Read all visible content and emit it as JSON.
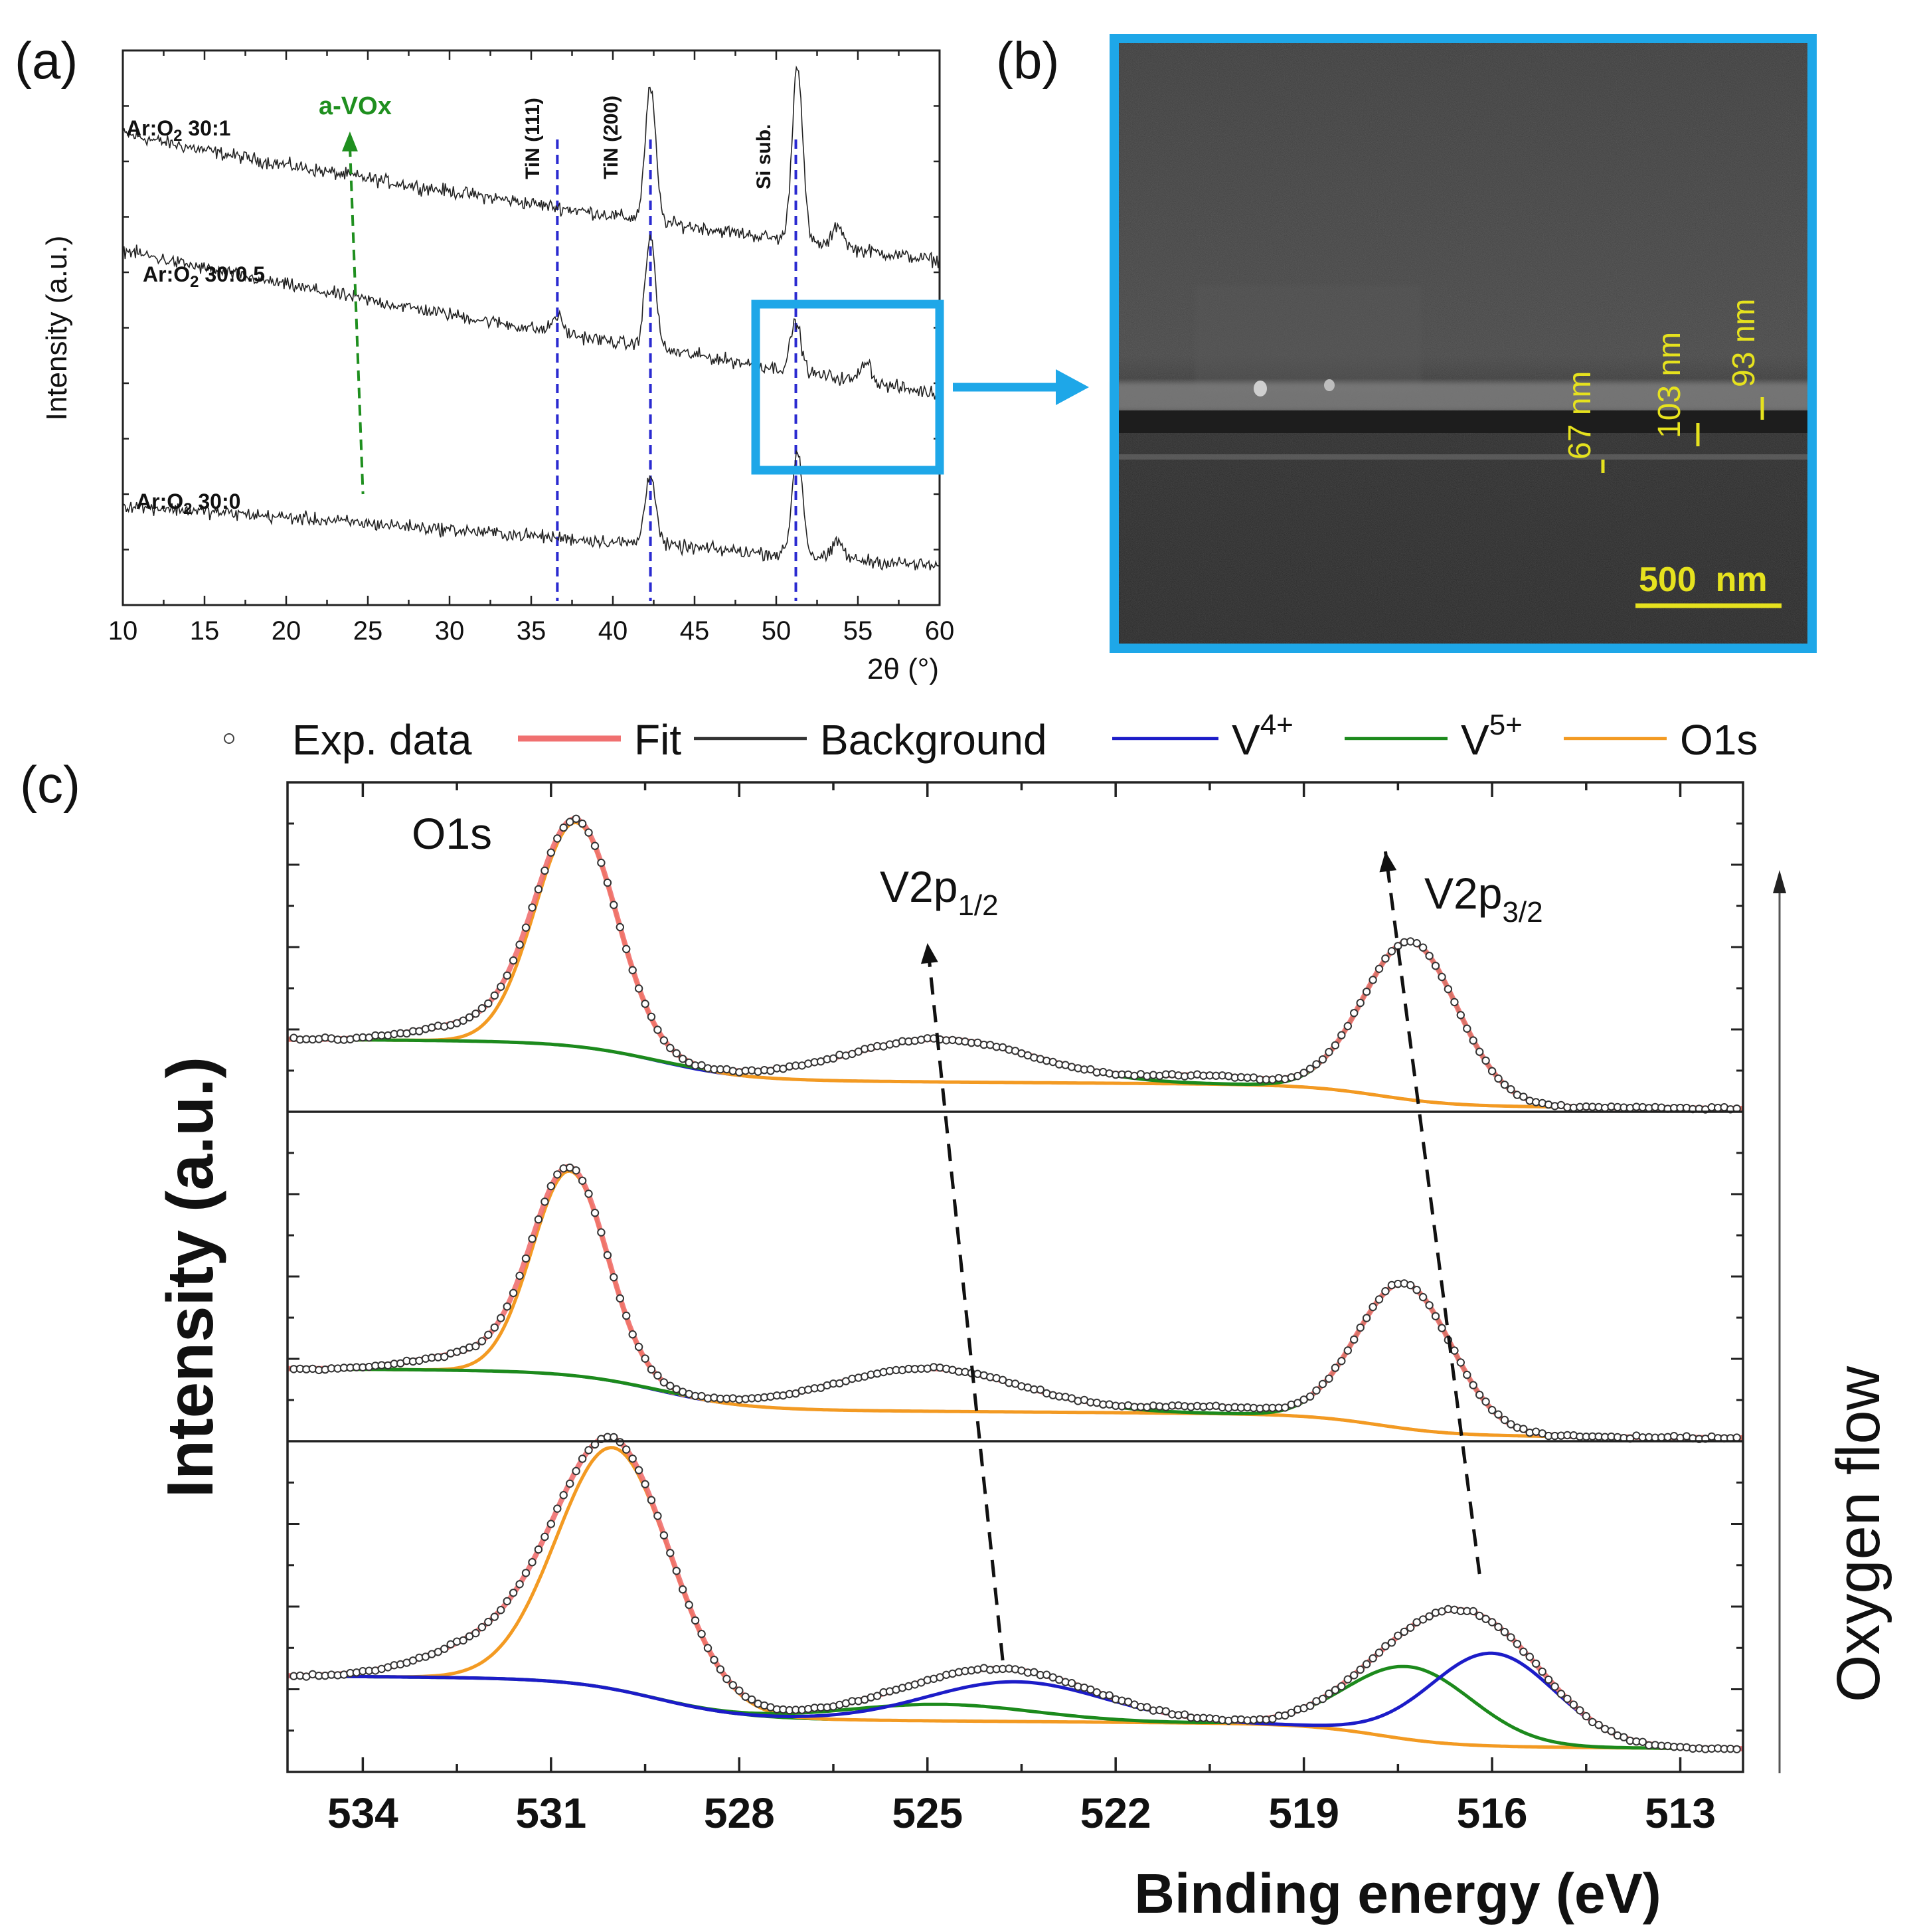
{
  "panel_labels": {
    "a": "(a)",
    "b": "(b)",
    "c": "(c)"
  },
  "colors": {
    "highlight": "#1ea7e8",
    "fit": "#f07070",
    "background": "#444444",
    "v4": "#1c1cc8",
    "v5": "#1c8a1c",
    "o1s": "#f39a22",
    "avox": "#1f8f1f",
    "ref_lines": "#2a2ad0",
    "sem_label": "#e6e21e"
  },
  "chart_data": [
    {
      "panel": "a",
      "type": "line",
      "xlabel": "2θ (°)",
      "ylabel": "Intensity (a.u.)",
      "xlim": [
        10,
        60
      ],
      "x_ticks": [
        "10",
        "15",
        "20",
        "25",
        "30",
        "35",
        "40",
        "45",
        "50",
        "55",
        "60"
      ],
      "series": [
        {
          "name": "Ar:O2 30:1",
          "name_main": "Ar:O",
          "name_sub": "2",
          "name_tail": " 30:1",
          "baseline_start": 0.82,
          "baseline_end": 0.62,
          "peaks": [
            [
              42.3,
              0.24
            ],
            [
              51.3,
              0.32
            ],
            [
              53.8,
              0.04
            ]
          ]
        },
        {
          "name": "Ar:O2 30:0.5",
          "name_main": "Ar:O",
          "name_sub": "2",
          "name_tail": " 30:0.5",
          "baseline_start": 0.61,
          "baseline_end": 0.38,
          "peaks": [
            [
              36.6,
              0.03
            ],
            [
              42.3,
              0.2
            ],
            [
              51.2,
              0.09
            ],
            [
              55.5,
              0.04
            ]
          ]
        },
        {
          "name": "Ar:O2 30:0",
          "name_main": "Ar:O",
          "name_sub": "2",
          "name_tail": " 30:0",
          "baseline_start": 0.18,
          "baseline_end": 0.07,
          "peaks": [
            [
              42.3,
              0.13
            ],
            [
              51.3,
              0.19
            ],
            [
              53.8,
              0.03
            ]
          ]
        }
      ],
      "reference_lines": [
        {
          "label": "TiN (111)",
          "x": 36.6
        },
        {
          "label": "TiN (200)",
          "x": 42.3
        },
        {
          "label": "Si sub.",
          "x": 51.2
        }
      ],
      "annotation": {
        "label": "a-VOx",
        "x_top": 23.9,
        "x_bottom": 24.7
      }
    },
    {
      "panel": "c",
      "type": "line",
      "xlabel": "Binding energy (eV)",
      "ylabel": "Intensity (a.u.)",
      "side_label": "Oxygen flow",
      "xlim": [
        535.2,
        512.0
      ],
      "x_ticks": [
        "534",
        "531",
        "528",
        "525",
        "522",
        "519",
        "516",
        "513"
      ],
      "legend": [
        {
          "label": "Exp. data",
          "style": "marker"
        },
        {
          "label": "Fit",
          "style": "fit"
        },
        {
          "label": "Background",
          "style": "background"
        },
        {
          "label": "V",
          "sup": "4+",
          "style": "v4"
        },
        {
          "label": "V",
          "sup": "5+",
          "style": "v5"
        },
        {
          "label": "O1s",
          "style": "o1s"
        }
      ],
      "peak_labels": [
        {
          "main": "O1s",
          "sub": ""
        },
        {
          "main": "V2p",
          "sub": "1/2"
        },
        {
          "main": "V2p",
          "sub": "3/2"
        }
      ],
      "subplots": [
        {
          "position": "top",
          "background_levels": [
            0.22,
            0.01
          ],
          "o1s": {
            "center": 530.6,
            "height": 0.68,
            "width": 0.65
          },
          "v5": [
            {
              "center": 524.8,
              "height": 0.13,
              "width": 1.5
            },
            {
              "center": 517.3,
              "height": 0.48,
              "width": 0.75
            }
          ],
          "v4": [],
          "shoulder": {
            "center": 532.2,
            "height": 0.05,
            "width": 0.9
          },
          "dip": {
            "center": 520.5,
            "height": 0.025,
            "width": 0.9
          }
        },
        {
          "position": "middle",
          "background_levels": [
            0.22,
            0.01
          ],
          "o1s": {
            "center": 530.7,
            "height": 0.62,
            "width": 0.6
          },
          "v5": [
            {
              "center": 525.0,
              "height": 0.13,
              "width": 1.5
            },
            {
              "center": 517.4,
              "height": 0.44,
              "width": 0.75
            }
          ],
          "v4": [],
          "shoulder": {
            "center": 532.2,
            "height": 0.05,
            "width": 0.9
          },
          "dip": {
            "center": 520.5,
            "height": 0.02,
            "width": 0.9
          }
        },
        {
          "position": "bottom",
          "background_levels": [
            0.29,
            0.07
          ],
          "o1s": {
            "center": 530.0,
            "height": 0.73,
            "width": 0.9
          },
          "v5": [
            {
              "center": 524.8,
              "height": 0.05,
              "width": 1.5
            },
            {
              "center": 517.3,
              "height": 0.22,
              "width": 1.0
            }
          ],
          "v4": [
            {
              "center": 523.6,
              "height": 0.12,
              "width": 1.4
            },
            {
              "center": 516.0,
              "height": 0.28,
              "width": 1.0
            }
          ],
          "shoulder": {
            "center": 531.8,
            "height": 0.11,
            "width": 1.1
          },
          "dip": {
            "center": 520.0,
            "height": 0.0,
            "width": 0.9
          }
        }
      ],
      "trend_lines": [
        {
          "label": "V2p1/2 shift",
          "energies": [
            523.8,
            525.0
          ]
        },
        {
          "label": "V2p3/2 shift",
          "energies": [
            516.2,
            517.7
          ]
        }
      ]
    }
  ],
  "sem": {
    "thickness_labels": [
      "67 nm",
      "103 nm",
      "93 nm"
    ],
    "scalebar": "500  nm"
  }
}
